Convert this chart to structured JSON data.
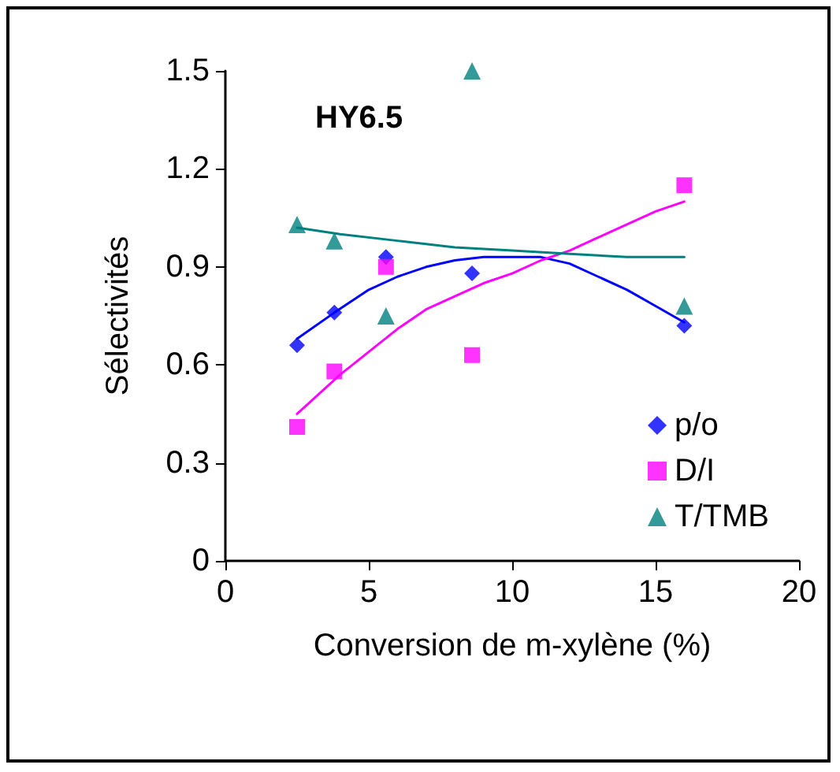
{
  "chart_data": {
    "type": "scatter",
    "title": "HY6.5",
    "xlabel": "Conversion de m-xylène (%)",
    "ylabel": "Sélectivités",
    "xlim": [
      0,
      20
    ],
    "xticks": [
      0,
      5,
      10,
      15,
      20
    ],
    "ylim": [
      0,
      1.5
    ],
    "yticks": [
      0,
      0.3,
      0.6,
      0.9,
      1.2,
      1.5
    ],
    "grid": false,
    "legend": "bottom right",
    "series": [
      {
        "name": "p/o",
        "color": "#0000ff",
        "marker": "diamond",
        "x": [
          2.5,
          3.8,
          5.6,
          8.6,
          16
        ],
        "values": [
          0.66,
          0.76,
          0.93,
          0.88,
          0.72
        ]
      },
      {
        "name": "D/I",
        "color": "#ff00ff",
        "marker": "square",
        "x": [
          2.5,
          3.8,
          5.6,
          8.6,
          16
        ],
        "values": [
          0.41,
          0.58,
          0.9,
          0.63,
          1.15
        ]
      },
      {
        "name": "T/TMB",
        "color": "#008080",
        "marker": "triangle",
        "x": [
          2.5,
          3.8,
          5.6,
          8.6,
          16
        ],
        "values": [
          1.03,
          0.98,
          0.75,
          1.5,
          0.78
        ]
      },
      {
        "type": "line",
        "color": "#0000ff",
        "marker": "none",
        "x": [
          2.5,
          3.8,
          5,
          6,
          7,
          8,
          9,
          10,
          11,
          12,
          13,
          14,
          15,
          16
        ],
        "values": [
          0.68,
          0.76,
          0.83,
          0.87,
          0.9,
          0.92,
          0.93,
          0.93,
          0.93,
          0.91,
          0.87,
          0.83,
          0.78,
          0.73
        ]
      },
      {
        "type": "line",
        "color": "#ff00ff",
        "marker": "none",
        "x": [
          2.5,
          4,
          5,
          6,
          7,
          8,
          9,
          10,
          11,
          12,
          13,
          14,
          15,
          16
        ],
        "values": [
          0.45,
          0.57,
          0.64,
          0.71,
          0.77,
          0.81,
          0.85,
          0.88,
          0.92,
          0.95,
          0.99,
          1.03,
          1.07,
          1.1
        ]
      },
      {
        "type": "line",
        "color": "#008080",
        "marker": "none",
        "x": [
          2.5,
          4,
          6,
          8,
          10,
          12,
          14,
          16
        ],
        "values": [
          1.02,
          1.0,
          0.98,
          0.96,
          0.95,
          0.94,
          0.93,
          0.93
        ]
      }
    ]
  }
}
